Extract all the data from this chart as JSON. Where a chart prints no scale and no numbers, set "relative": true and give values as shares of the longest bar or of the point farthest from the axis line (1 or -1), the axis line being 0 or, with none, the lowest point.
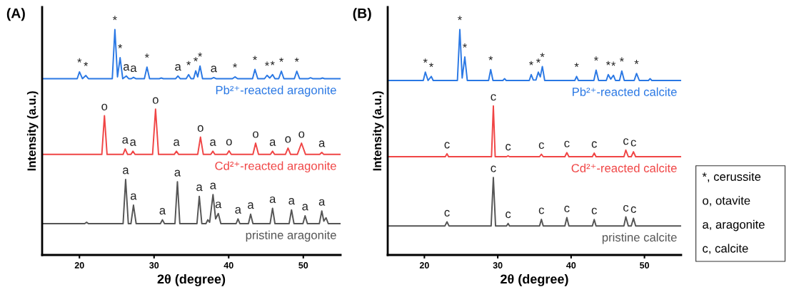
{
  "chart_data": [
    {
      "type": "line",
      "title": "(A)",
      "xlabel": "2θ (degree)",
      "ylabel": "Intensity (a.u.)",
      "relative": true,
      "xlim": [
        15,
        55
      ],
      "xticks": [
        20,
        30,
        40,
        50
      ],
      "grid": false,
      "legend": false,
      "marker": "none",
      "line_style": "solid",
      "series": [
        {
          "name": "Pb²⁺-reacted aragonite",
          "color": "#2a78e4",
          "x": [
            15,
            19.7,
            20.0,
            20.4,
            20.86,
            21.2,
            24.4,
            24.75,
            25.1,
            25.45,
            25.8,
            26.28,
            26.6,
            26.95,
            27.24,
            27.55,
            28.7,
            29.05,
            29.4,
            30.7,
            30.97,
            31.25,
            32.9,
            33.2,
            33.5,
            34.3,
            34.63,
            34.95,
            35.3,
            35.58,
            35.85,
            36.16,
            36.5,
            37.7,
            38.0,
            38.3,
            40.5,
            40.84,
            41.2,
            43.2,
            43.52,
            43.9,
            44.8,
            45.14,
            45.5,
            45.88,
            46.2,
            46.7,
            47.06,
            47.4,
            48.8,
            49.13,
            49.5,
            50.7,
            50.97,
            51.25,
            52.3,
            52.57,
            52.85,
            55
          ],
          "values": [
            0.782,
            0.782,
            0.812,
            0.782,
            0.796,
            0.782,
            0.782,
            1.0,
            0.79,
            0.875,
            0.782,
            0.794,
            0.782,
            0.782,
            0.788,
            0.782,
            0.782,
            0.833,
            0.782,
            0.782,
            0.785,
            0.782,
            0.782,
            0.794,
            0.782,
            0.782,
            0.8,
            0.782,
            0.782,
            0.817,
            0.79,
            0.838,
            0.782,
            0.782,
            0.787,
            0.782,
            0.782,
            0.79,
            0.782,
            0.782,
            0.823,
            0.782,
            0.782,
            0.797,
            0.785,
            0.8,
            0.782,
            0.782,
            0.815,
            0.782,
            0.782,
            0.815,
            0.782,
            0.782,
            0.786,
            0.782,
            0.782,
            0.785,
            0.782,
            0.782
          ]
        },
        {
          "name": "Cd²⁺-reacted aragonite",
          "color": "#f04545",
          "x": [
            15,
            23.0,
            23.35,
            23.7,
            25.85,
            26.13,
            26.45,
            26.9,
            27.17,
            27.45,
            29.8,
            30.2,
            30.6,
            32.7,
            33.0,
            33.3,
            35.85,
            36.22,
            36.6,
            37.6,
            37.88,
            38.15,
            39.75,
            40.05,
            40.35,
            43.25,
            43.61,
            44.0,
            45.6,
            45.88,
            46.15,
            47.6,
            47.95,
            48.3,
            49.2,
            49.76,
            50.3,
            52.2,
            52.48,
            52.75,
            55
          ],
          "values": [
            0.446,
            0.446,
            0.618,
            0.446,
            0.446,
            0.47,
            0.446,
            0.446,
            0.46,
            0.446,
            0.446,
            0.647,
            0.446,
            0.446,
            0.46,
            0.446,
            0.446,
            0.523,
            0.446,
            0.446,
            0.46,
            0.446,
            0.446,
            0.462,
            0.446,
            0.446,
            0.496,
            0.446,
            0.446,
            0.46,
            0.446,
            0.446,
            0.474,
            0.446,
            0.446,
            0.496,
            0.446,
            0.446,
            0.455,
            0.446,
            0.446
          ]
        },
        {
          "name": "pristine aragonite",
          "color": "#555555",
          "x": [
            15,
            20.7,
            20.96,
            21.2,
            25.85,
            26.19,
            26.55,
            26.9,
            27.24,
            27.6,
            30.85,
            31.12,
            31.4,
            32.8,
            33.13,
            33.45,
            35.75,
            36.06,
            36.4,
            36.95,
            37.2,
            37.45,
            37.9,
            38.25,
            38.61,
            38.95,
            41.0,
            41.25,
            41.5,
            42.65,
            42.94,
            43.25,
            45.55,
            45.88,
            46.2,
            48.1,
            48.42,
            48.75,
            49.95,
            50.24,
            50.55,
            52.15,
            52.48,
            52.75,
            53.05,
            53.35,
            55
          ],
          "values": [
            0.139,
            0.139,
            0.145,
            0.139,
            0.139,
            0.335,
            0.139,
            0.139,
            0.221,
            0.139,
            0.139,
            0.156,
            0.139,
            0.139,
            0.325,
            0.139,
            0.139,
            0.26,
            0.139,
            0.139,
            0.156,
            0.145,
            0.268,
            0.16,
            0.184,
            0.139,
            0.139,
            0.16,
            0.139,
            0.139,
            0.181,
            0.139,
            0.139,
            0.207,
            0.139,
            0.139,
            0.2,
            0.139,
            0.139,
            0.174,
            0.139,
            0.139,
            0.195,
            0.15,
            0.165,
            0.139,
            0.139
          ]
        }
      ],
      "annotations": [
        {
          "text": "*",
          "x": 20.0,
          "y": 0.812
        },
        {
          "text": "*",
          "x": 20.86,
          "y": 0.796
        },
        {
          "text": "*",
          "x": 24.75,
          "y": 1.0
        },
        {
          "text": "*",
          "x": 25.45,
          "y": 0.875
        },
        {
          "text": "a",
          "x": 26.28,
          "y": 0.794
        },
        {
          "text": "a",
          "x": 27.24,
          "y": 0.788
        },
        {
          "text": "*",
          "x": 29.05,
          "y": 0.833
        },
        {
          "text": "a",
          "x": 33.2,
          "y": 0.794
        },
        {
          "text": "*",
          "x": 34.63,
          "y": 0.8
        },
        {
          "text": "*",
          "x": 35.58,
          "y": 0.817
        },
        {
          "text": "*",
          "x": 36.16,
          "y": 0.838
        },
        {
          "text": "a",
          "x": 38.0,
          "y": 0.787
        },
        {
          "text": "*",
          "x": 40.84,
          "y": 0.79
        },
        {
          "text": "*",
          "x": 43.52,
          "y": 0.823
        },
        {
          "text": "*",
          "x": 45.14,
          "y": 0.797
        },
        {
          "text": "*",
          "x": 45.88,
          "y": 0.8
        },
        {
          "text": "*",
          "x": 47.06,
          "y": 0.815
        },
        {
          "text": "*",
          "x": 49.13,
          "y": 0.815
        },
        {
          "text": "o",
          "x": 23.35,
          "y": 0.618
        },
        {
          "text": "a",
          "x": 26.13,
          "y": 0.47
        },
        {
          "text": "a",
          "x": 27.17,
          "y": 0.46
        },
        {
          "text": "o",
          "x": 30.2,
          "y": 0.647
        },
        {
          "text": "a",
          "x": 33.0,
          "y": 0.46
        },
        {
          "text": "o",
          "x": 36.22,
          "y": 0.523
        },
        {
          "text": "a",
          "x": 37.88,
          "y": 0.46
        },
        {
          "text": "o",
          "x": 40.05,
          "y": 0.462
        },
        {
          "text": "o",
          "x": 43.61,
          "y": 0.496
        },
        {
          "text": "a",
          "x": 45.88,
          "y": 0.46
        },
        {
          "text": "o",
          "x": 47.95,
          "y": 0.474
        },
        {
          "text": "o",
          "x": 49.76,
          "y": 0.496
        },
        {
          "text": "a",
          "x": 52.48,
          "y": 0.455
        },
        {
          "text": "a",
          "x": 26.19,
          "y": 0.335
        },
        {
          "text": "a",
          "x": 27.24,
          "y": 0.221
        },
        {
          "text": "a",
          "x": 31.12,
          "y": 0.156
        },
        {
          "text": "a",
          "x": 33.13,
          "y": 0.325
        },
        {
          "text": "a",
          "x": 36.06,
          "y": 0.26
        },
        {
          "text": "a",
          "x": 37.9,
          "y": 0.268
        },
        {
          "text": "a",
          "x": 38.61,
          "y": 0.184
        },
        {
          "text": "a",
          "x": 41.25,
          "y": 0.16
        },
        {
          "text": "a",
          "x": 42.94,
          "y": 0.181
        },
        {
          "text": "a",
          "x": 45.88,
          "y": 0.207
        },
        {
          "text": "a",
          "x": 48.42,
          "y": 0.2
        },
        {
          "text": "a",
          "x": 50.24,
          "y": 0.174
        },
        {
          "text": "a",
          "x": 52.48,
          "y": 0.195
        }
      ]
    },
    {
      "type": "line",
      "title": "(B)",
      "xlabel": "2θ (degree)",
      "ylabel": "Intensity (a.u.)",
      "relative": true,
      "xlim": [
        15,
        55
      ],
      "xticks": [
        20,
        30,
        40,
        50
      ],
      "grid": false,
      "legend": false,
      "marker": "none",
      "line_style": "solid",
      "series": [
        {
          "name": "Pb²⁺-reacted calcite",
          "color": "#2a78e4",
          "x": [
            15,
            19.85,
            20.13,
            20.5,
            20.94,
            21.2,
            24.5,
            24.83,
            25.15,
            25.51,
            25.85,
            28.75,
            29.04,
            29.35,
            30.7,
            30.93,
            31.15,
            34.3,
            34.56,
            34.85,
            35.2,
            35.53,
            35.8,
            36.08,
            36.4,
            40.5,
            40.75,
            41.0,
            43.1,
            43.41,
            43.75,
            44.8,
            45.06,
            45.4,
            45.77,
            46.05,
            46.6,
            46.91,
            47.25,
            48.6,
            48.92,
            49.3,
            50.55,
            50.77,
            51.0,
            55
          ],
          "values": [
            0.774,
            0.774,
            0.811,
            0.774,
            0.792,
            0.774,
            0.774,
            1.0,
            0.785,
            0.878,
            0.774,
            0.774,
            0.822,
            0.774,
            0.774,
            0.782,
            0.774,
            0.774,
            0.8,
            0.776,
            0.776,
            0.811,
            0.79,
            0.836,
            0.774,
            0.774,
            0.792,
            0.774,
            0.774,
            0.82,
            0.774,
            0.774,
            0.8,
            0.78,
            0.797,
            0.774,
            0.774,
            0.816,
            0.774,
            0.774,
            0.805,
            0.774,
            0.774,
            0.782,
            0.774,
            0.774
          ]
        },
        {
          "name": "Cd²⁺-reacted calcite",
          "color": "#f04545",
          "x": [
            15,
            22.85,
            23.08,
            23.3,
            29.15,
            29.4,
            29.65,
            31.2,
            31.41,
            31.6,
            35.7,
            35.95,
            36.2,
            39.15,
            39.42,
            39.7,
            42.9,
            43.15,
            43.4,
            47.2,
            47.46,
            47.8,
            48.2,
            48.5,
            48.8,
            55
          ],
          "values": [
            0.436,
            0.436,
            0.449,
            0.436,
            0.436,
            0.661,
            0.436,
            0.436,
            0.44,
            0.436,
            0.436,
            0.447,
            0.436,
            0.436,
            0.454,
            0.436,
            0.436,
            0.452,
            0.436,
            0.436,
            0.465,
            0.436,
            0.436,
            0.458,
            0.436,
            0.436
          ]
        },
        {
          "name": "pristine calcite",
          "color": "#555555",
          "x": [
            15,
            22.8,
            23.08,
            23.35,
            29.1,
            29.4,
            29.7,
            31.2,
            31.41,
            31.6,
            35.7,
            35.95,
            36.2,
            39.15,
            39.42,
            39.7,
            42.9,
            43.15,
            43.4,
            47.2,
            47.46,
            47.8,
            48.2,
            48.5,
            48.8,
            55
          ],
          "values": [
            0.129,
            0.129,
            0.147,
            0.129,
            0.129,
            0.344,
            0.129,
            0.129,
            0.14,
            0.129,
            0.129,
            0.158,
            0.129,
            0.129,
            0.166,
            0.129,
            0.129,
            0.157,
            0.129,
            0.129,
            0.169,
            0.129,
            0.129,
            0.163,
            0.129,
            0.129
          ]
        }
      ],
      "annotations": [
        {
          "text": "*",
          "x": 20.13,
          "y": 0.811
        },
        {
          "text": "*",
          "x": 20.94,
          "y": 0.792
        },
        {
          "text": "*",
          "x": 24.83,
          "y": 1.0
        },
        {
          "text": "*",
          "x": 25.51,
          "y": 0.878
        },
        {
          "text": "*",
          "x": 29.04,
          "y": 0.822
        },
        {
          "text": "*",
          "x": 34.56,
          "y": 0.8
        },
        {
          "text": "*",
          "x": 35.53,
          "y": 0.811
        },
        {
          "text": "*",
          "x": 36.08,
          "y": 0.836
        },
        {
          "text": "*",
          "x": 40.75,
          "y": 0.792
        },
        {
          "text": "*",
          "x": 43.41,
          "y": 0.82
        },
        {
          "text": "*",
          "x": 45.06,
          "y": 0.8
        },
        {
          "text": "*",
          "x": 45.77,
          "y": 0.797
        },
        {
          "text": "*",
          "x": 46.91,
          "y": 0.816
        },
        {
          "text": "*",
          "x": 48.92,
          "y": 0.805
        },
        {
          "text": "c",
          "x": 23.08,
          "y": 0.449
        },
        {
          "text": "c",
          "x": 29.4,
          "y": 0.661
        },
        {
          "text": "c",
          "x": 31.41,
          "y": 0.44
        },
        {
          "text": "c",
          "x": 35.95,
          "y": 0.447
        },
        {
          "text": "c",
          "x": 39.42,
          "y": 0.454
        },
        {
          "text": "c",
          "x": 43.15,
          "y": 0.452
        },
        {
          "text": "c",
          "x": 47.46,
          "y": 0.465
        },
        {
          "text": "c",
          "x": 48.5,
          "y": 0.458
        },
        {
          "text": "c",
          "x": 23.08,
          "y": 0.147
        },
        {
          "text": "c",
          "x": 29.4,
          "y": 0.344
        },
        {
          "text": "c",
          "x": 31.41,
          "y": 0.14
        },
        {
          "text": "c",
          "x": 35.95,
          "y": 0.158
        },
        {
          "text": "c",
          "x": 39.42,
          "y": 0.166
        },
        {
          "text": "c",
          "x": 43.15,
          "y": 0.157
        },
        {
          "text": "c",
          "x": 47.46,
          "y": 0.169
        },
        {
          "text": "c",
          "x": 48.5,
          "y": 0.163
        },
        "*, cerussite",
        "o, otavite",
        "a, aragonite",
        "c, calcite"
      ]
    }
  ]
}
